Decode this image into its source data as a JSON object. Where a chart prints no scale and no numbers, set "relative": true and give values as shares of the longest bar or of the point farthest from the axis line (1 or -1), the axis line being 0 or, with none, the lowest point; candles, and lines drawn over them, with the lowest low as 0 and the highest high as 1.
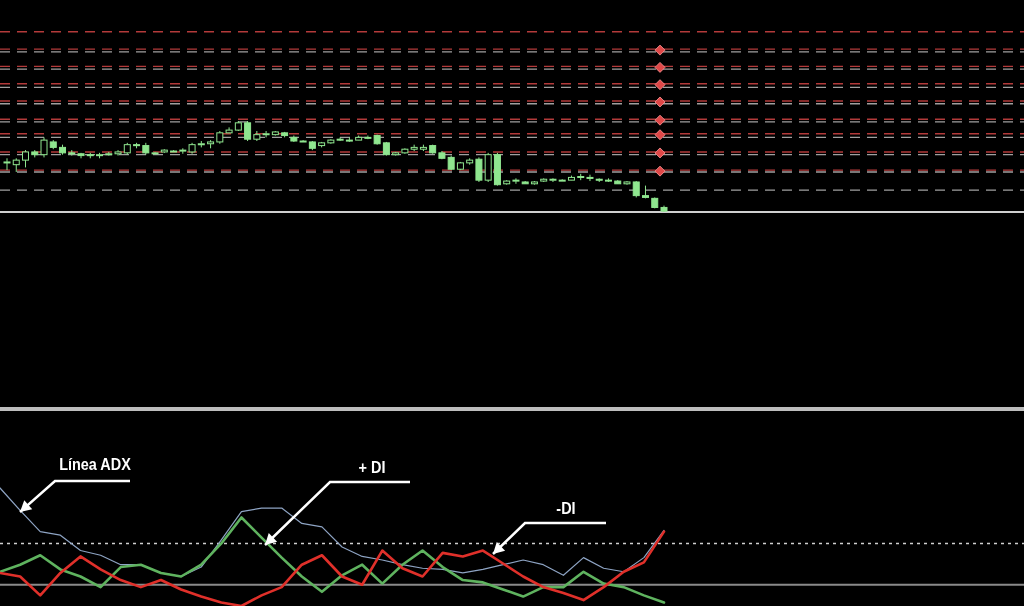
{
  "chart_data": [
    {
      "type": "candlestick",
      "relative": true,
      "color": "#8fe68f",
      "categories": [
        null,
        null,
        null,
        null,
        null,
        null,
        null,
        null,
        null,
        null,
        null,
        null,
        null,
        null,
        null,
        null,
        null,
        null,
        null,
        null,
        null,
        null,
        null,
        null,
        null,
        null,
        null,
        null,
        null,
        null,
        null,
        null,
        null,
        null,
        null,
        null,
        null,
        null,
        null,
        null,
        null,
        null,
        null,
        null,
        null,
        null,
        null,
        null,
        null,
        null,
        null,
        null,
        null,
        null,
        null,
        null,
        null,
        null,
        null,
        null,
        null,
        null,
        null,
        null,
        null,
        null,
        null,
        null,
        null,
        null,
        null,
        null
      ],
      "ohlc": [
        [
          0.54,
          0.59,
          0.46,
          0.55
        ],
        [
          0.52,
          0.59,
          0.44,
          0.57
        ],
        [
          0.57,
          0.68,
          0.49,
          0.66
        ],
        [
          0.66,
          0.68,
          0.6,
          0.63
        ],
        [
          0.63,
          0.82,
          0.6,
          0.79
        ],
        [
          0.77,
          0.79,
          0.69,
          0.71
        ],
        [
          0.71,
          0.74,
          0.63,
          0.65
        ],
        [
          0.65,
          0.68,
          0.62,
          0.64
        ],
        [
          0.64,
          0.65,
          0.59,
          0.62
        ],
        [
          0.63,
          0.65,
          0.59,
          0.62
        ],
        [
          0.62,
          0.65,
          0.59,
          0.63
        ],
        [
          0.63,
          0.66,
          0.62,
          0.64
        ],
        [
          0.64,
          0.68,
          0.62,
          0.66
        ],
        [
          0.65,
          0.76,
          0.63,
          0.74
        ],
        [
          0.74,
          0.76,
          0.7,
          0.73
        ],
        [
          0.73,
          0.76,
          0.63,
          0.65
        ],
        [
          0.65,
          0.66,
          0.64,
          0.65
        ],
        [
          0.66,
          0.69,
          0.65,
          0.68
        ],
        [
          0.67,
          0.68,
          0.66,
          0.67
        ],
        [
          0.67,
          0.7,
          0.64,
          0.68
        ],
        [
          0.66,
          0.76,
          0.64,
          0.74
        ],
        [
          0.74,
          0.78,
          0.71,
          0.75
        ],
        [
          0.75,
          0.79,
          0.7,
          0.77
        ],
        [
          0.77,
          0.89,
          0.75,
          0.87
        ],
        [
          0.87,
          0.93,
          0.87,
          0.9
        ],
        [
          0.9,
          1.0,
          0.89,
          0.98
        ],
        [
          0.98,
          1.0,
          0.78,
          0.8
        ],
        [
          0.8,
          0.89,
          0.78,
          0.85
        ],
        [
          0.85,
          0.89,
          0.82,
          0.86
        ],
        [
          0.85,
          0.89,
          0.84,
          0.88
        ],
        [
          0.87,
          0.88,
          0.82,
          0.84
        ],
        [
          0.82,
          0.84,
          0.77,
          0.78
        ],
        [
          0.78,
          0.79,
          0.77,
          0.78
        ],
        [
          0.77,
          0.78,
          0.68,
          0.7
        ],
        [
          0.73,
          0.77,
          0.71,
          0.76
        ],
        [
          0.76,
          0.8,
          0.75,
          0.79
        ],
        [
          0.79,
          0.82,
          0.78,
          0.8
        ],
        [
          0.79,
          0.82,
          0.77,
          0.79
        ],
        [
          0.79,
          0.84,
          0.79,
          0.82
        ],
        [
          0.81,
          0.84,
          0.8,
          0.82
        ],
        [
          0.84,
          0.85,
          0.74,
          0.75
        ],
        [
          0.76,
          0.77,
          0.62,
          0.63
        ],
        [
          0.63,
          0.66,
          0.62,
          0.65
        ],
        [
          0.65,
          0.7,
          0.64,
          0.69
        ],
        [
          0.69,
          0.74,
          0.67,
          0.71
        ],
        [
          0.69,
          0.74,
          0.67,
          0.71
        ],
        [
          0.73,
          0.74,
          0.64,
          0.65
        ],
        [
          0.65,
          0.67,
          0.58,
          0.59
        ],
        [
          0.6,
          0.62,
          0.46,
          0.47
        ],
        [
          0.47,
          0.55,
          0.46,
          0.54
        ],
        [
          0.54,
          0.59,
          0.52,
          0.57
        ],
        [
          0.58,
          0.6,
          0.33,
          0.35
        ],
        [
          0.35,
          0.65,
          0.33,
          0.63
        ],
        [
          0.63,
          0.65,
          0.29,
          0.3
        ],
        [
          0.31,
          0.35,
          0.3,
          0.34
        ],
        [
          0.34,
          0.37,
          0.31,
          0.35
        ],
        [
          0.33,
          0.34,
          0.31,
          0.31
        ],
        [
          0.31,
          0.34,
          0.3,
          0.33
        ],
        [
          0.34,
          0.37,
          0.33,
          0.36
        ],
        [
          0.35,
          0.37,
          0.33,
          0.36
        ],
        [
          0.35,
          0.36,
          0.35,
          0.35
        ],
        [
          0.35,
          0.4,
          0.35,
          0.38
        ],
        [
          0.38,
          0.42,
          0.35,
          0.39
        ],
        [
          0.38,
          0.41,
          0.34,
          0.37
        ],
        [
          0.36,
          0.37,
          0.33,
          0.35
        ],
        [
          0.35,
          0.37,
          0.33,
          0.35
        ],
        [
          0.34,
          0.35,
          0.31,
          0.31
        ],
        [
          0.31,
          0.34,
          0.3,
          0.33
        ],
        [
          0.33,
          0.34,
          0.16,
          0.18
        ],
        [
          0.18,
          0.29,
          0.15,
          0.16
        ],
        [
          0.15,
          0.16,
          0.04,
          0.05
        ],
        [
          0.05,
          0.07,
          0.0,
          0.01
        ]
      ],
      "ref_lines": [
        {
          "axis": "y",
          "value": 1.98,
          "color": "#b33a3a",
          "line_style": "dashed"
        },
        {
          "axis": "y",
          "value": 1.79,
          "color": "#b33a3a",
          "line_style": "dashed"
        },
        {
          "axis": "y",
          "value": 1.76,
          "color": "#a0a0a0",
          "line_style": "dashed"
        },
        {
          "axis": "y",
          "value": 1.6,
          "color": "#b33a3a",
          "line_style": "dashed"
        },
        {
          "axis": "y",
          "value": 1.57,
          "color": "#a0a0a0",
          "line_style": "dashed"
        },
        {
          "axis": "y",
          "value": 1.41,
          "color": "#b33a3a",
          "line_style": "dashed"
        },
        {
          "axis": "y",
          "value": 1.37,
          "color": "#a0a0a0",
          "line_style": "dashed"
        },
        {
          "axis": "y",
          "value": 1.22,
          "color": "#b33a3a",
          "line_style": "dashed"
        },
        {
          "axis": "y",
          "value": 1.19,
          "color": "#a0a0a0",
          "line_style": "dashed"
        },
        {
          "axis": "y",
          "value": 1.02,
          "color": "#b33a3a",
          "line_style": "dashed"
        },
        {
          "axis": "y",
          "value": 0.99,
          "color": "#a0a0a0",
          "line_style": "dashed"
        },
        {
          "axis": "y",
          "value": 0.86,
          "color": "#b33a3a",
          "line_style": "dashed"
        },
        {
          "axis": "y",
          "value": 0.82,
          "color": "#a0a0a0",
          "line_style": "dashed"
        },
        {
          "axis": "y",
          "value": 0.66,
          "color": "#b33a3a",
          "line_style": "dashed"
        },
        {
          "axis": "y",
          "value": 0.63,
          "color": "#a0a0a0",
          "line_style": "dashed"
        },
        {
          "axis": "y",
          "value": 0.46,
          "color": "#b33a3a",
          "line_style": "dashed"
        },
        {
          "axis": "y",
          "value": 0.44,
          "color": "#a0a0a0",
          "line_style": "dashed"
        },
        {
          "axis": "y",
          "value": 0.24,
          "color": "#a0a0a0",
          "line_style": "dashed"
        }
      ]
    },
    {
      "type": "line",
      "relative": true,
      "categories": [
        null,
        null,
        null,
        null,
        null,
        null,
        null,
        null,
        null,
        null,
        null,
        null,
        null,
        null,
        null,
        null,
        null,
        null,
        null,
        null,
        null,
        null,
        null,
        null,
        null,
        null,
        null,
        null,
        null,
        null,
        null,
        null,
        null,
        null
      ],
      "series": [
        {
          "name": "Línea ADX",
          "color": "#8ea4c4",
          "values": [
            1.0,
            0.81,
            0.63,
            0.6,
            0.47,
            0.43,
            0.35,
            0.35,
            0.28,
            0.25,
            0.33,
            0.56,
            0.8,
            0.83,
            0.83,
            0.7,
            0.67,
            0.5,
            0.42,
            0.39,
            0.35,
            0.32,
            0.31,
            0.28,
            0.31,
            0.35,
            0.39,
            0.35,
            0.26,
            0.41,
            0.32,
            0.29,
            0.41,
            0.64
          ]
        },
        {
          "name": "+ DI",
          "color": "#5fb35f",
          "values": [
            0.29,
            0.35,
            0.43,
            0.31,
            0.25,
            0.16,
            0.33,
            0.35,
            0.28,
            0.25,
            0.35,
            0.53,
            0.75,
            0.58,
            0.41,
            0.25,
            0.12,
            0.26,
            0.35,
            0.19,
            0.35,
            0.47,
            0.33,
            0.22,
            0.2,
            0.14,
            0.08,
            0.16,
            0.16,
            0.29,
            0.19,
            0.16,
            0.09,
            0.03
          ]
        },
        {
          "name": "-DI",
          "color": "#e0302a",
          "values": [
            0.28,
            0.25,
            0.09,
            0.28,
            0.42,
            0.31,
            0.22,
            0.16,
            0.22,
            0.14,
            0.08,
            0.03,
            0.0,
            0.09,
            0.16,
            0.35,
            0.43,
            0.25,
            0.18,
            0.47,
            0.32,
            0.25,
            0.45,
            0.42,
            0.47,
            0.36,
            0.25,
            0.16,
            0.11,
            0.05,
            0.16,
            0.29,
            0.37,
            0.63
          ]
        }
      ],
      "ref_lines": [
        {
          "axis": "y",
          "value": 0.53,
          "color": "#d0d0d0",
          "line_style": "dotted"
        },
        {
          "axis": "y",
          "value": 0.18,
          "color": "#8a8a8a",
          "line_style": "solid"
        }
      ]
    }
  ]
}
